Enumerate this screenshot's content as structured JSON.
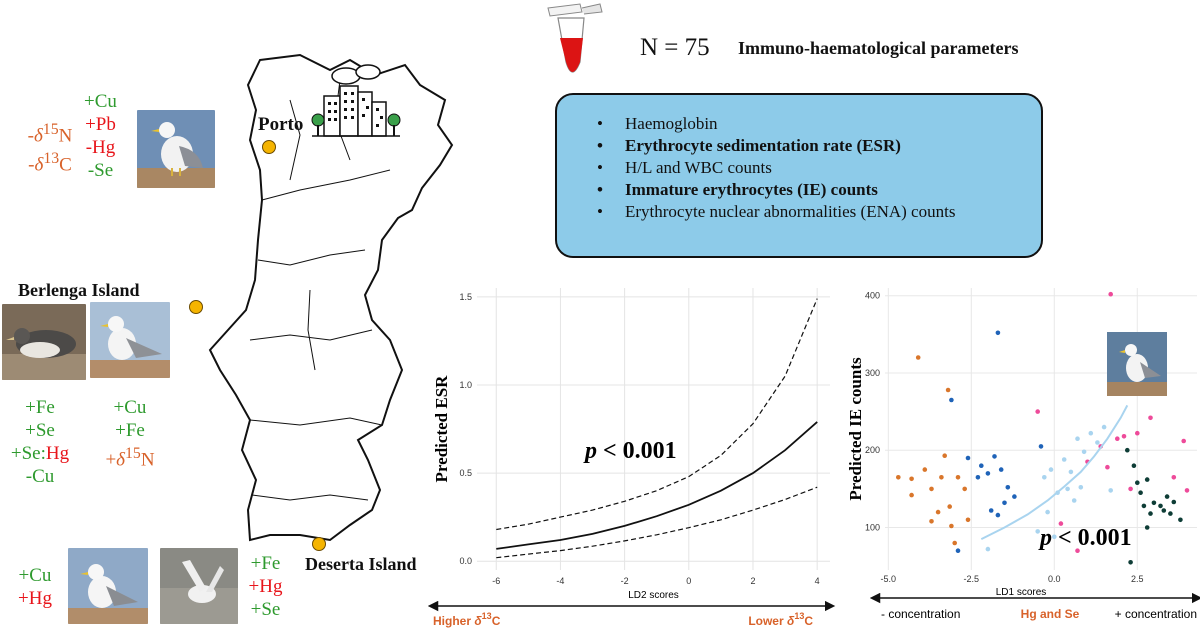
{
  "header": {
    "n_label": "N = 75",
    "parameters_title": "Immuno-haematological parameters"
  },
  "parameters": [
    {
      "label": "Haemoglobin",
      "bold": false
    },
    {
      "label": "Erythrocyte sedimentation rate (ESR)",
      "bold": true
    },
    {
      "label": "H/L and WBC counts",
      "bold": false
    },
    {
      "label": "Immature erythrocytes (IE) counts",
      "bold": true
    },
    {
      "label": "Erythrocyte nuclear abnormalities (ENA) counts",
      "bold": false
    }
  ],
  "sites": {
    "porto": {
      "name": "Porto",
      "left_list": [
        "-δ15N",
        "-δ13C"
      ],
      "right_list": [
        "+Cu",
        "+Pb",
        "-Hg",
        "-Se"
      ]
    },
    "berlenga": {
      "name": "Berlenga Island",
      "left_list": [
        "+Fe",
        "+Se",
        "+Se:Hg",
        "-Cu"
      ],
      "right_list": [
        "+Cu",
        "+Fe",
        "+δ15N"
      ]
    },
    "deserta": {
      "name": "Deserta Island",
      "left_list": [
        "+Cu",
        "+Hg"
      ],
      "right_list": [
        "+Fe",
        "+Hg",
        "+Se"
      ]
    }
  },
  "colors": {
    "increase": "#2e9a2e",
    "decrease": "#e8151b",
    "isotope": "#d8622a",
    "box": "#8dcbe9",
    "marker": "#f5b400"
  },
  "chart_data": [
    {
      "type": "line",
      "title": "",
      "xlabel": "LD2 scores",
      "ylabel": "Predicted ESR",
      "xlim": [
        -6.6,
        4.4
      ],
      "ylim": [
        -0.05,
        1.55
      ],
      "x_ticks": [
        -6,
        -4,
        -2,
        0,
        2,
        4
      ],
      "y_ticks": [
        0.0,
        0.5,
        1.0,
        1.5
      ],
      "grid": true,
      "annotation": "p < 0.001",
      "gradient_labels": {
        "left": "Higher δ13C",
        "right": "Lower δ13C"
      },
      "series": [
        {
          "style": "solid",
          "x": [
            -6,
            -5,
            -4,
            -3,
            -2,
            -1,
            0,
            1,
            2,
            3,
            4
          ],
          "y": [
            0.07,
            0.095,
            0.12,
            0.155,
            0.2,
            0.255,
            0.32,
            0.4,
            0.5,
            0.63,
            0.79
          ]
        },
        {
          "style": "dashed",
          "x": [
            -6,
            -5,
            -4,
            -3,
            -2,
            -1,
            0,
            1,
            2,
            3,
            4
          ],
          "y": [
            0.18,
            0.21,
            0.25,
            0.29,
            0.34,
            0.4,
            0.48,
            0.6,
            0.78,
            1.05,
            1.49
          ]
        },
        {
          "style": "dashed",
          "x": [
            -6,
            -5,
            -4,
            -3,
            -2,
            -1,
            0,
            1,
            2,
            3,
            4
          ],
          "y": [
            0.02,
            0.04,
            0.06,
            0.085,
            0.115,
            0.15,
            0.19,
            0.235,
            0.29,
            0.35,
            0.42
          ]
        }
      ]
    },
    {
      "type": "scatter",
      "title": "",
      "xlabel": "LD1 scores",
      "ylabel": "Predicted IE counts",
      "xlim": [
        -5.1,
        4.3
      ],
      "ylim": [
        45,
        410
      ],
      "x_ticks": [
        -5.0,
        -2.5,
        0.0,
        2.5
      ],
      "y_ticks": [
        100,
        200,
        300,
        400
      ],
      "grid": true,
      "annotation": "p < 0.001",
      "gradient_labels": {
        "left": "- concentration",
        "middle": "Hg and Se",
        "right": "+ concentration"
      },
      "fit_curve": {
        "color": "#a9d4ef",
        "x": [
          -2.2,
          -1.5,
          -0.8,
          -0.2,
          0.3,
          0.8,
          1.2,
          1.6,
          2.0,
          2.2
        ],
        "y": [
          85,
          100,
          117,
          135,
          153,
          172,
          192,
          215,
          242,
          258
        ]
      },
      "series": [
        {
          "color": "#d9762b",
          "points": [
            [
              -4.7,
              165
            ],
            [
              -4.3,
              163
            ],
            [
              -4.1,
              320
            ],
            [
              -3.9,
              175
            ],
            [
              -3.7,
              150
            ],
            [
              -3.5,
              120
            ],
            [
              -3.4,
              165
            ],
            [
              -3.3,
              193
            ],
            [
              -3.2,
              278
            ],
            [
              -3.15,
              127
            ],
            [
              -3.1,
              102
            ],
            [
              -3.0,
              80
            ],
            [
              -2.9,
              165
            ],
            [
              -2.7,
              150
            ],
            [
              -2.6,
              110
            ],
            [
              -3.7,
              108
            ],
            [
              -4.3,
              142
            ]
          ]
        },
        {
          "color": "#1f63b8",
          "points": [
            [
              -3.1,
              265
            ],
            [
              -2.6,
              190
            ],
            [
              -2.3,
              165
            ],
            [
              -2.2,
              180
            ],
            [
              -2.0,
              170
            ],
            [
              -1.8,
              192
            ],
            [
              -1.7,
              352
            ],
            [
              -1.6,
              175
            ],
            [
              -1.4,
              152
            ],
            [
              -1.2,
              140
            ],
            [
              -1.5,
              132
            ],
            [
              -1.7,
              116
            ],
            [
              -1.9,
              122
            ],
            [
              -2.9,
              70
            ],
            [
              -0.4,
              205
            ]
          ]
        },
        {
          "color": "#a9d4ef",
          "points": [
            [
              -0.3,
              165
            ],
            [
              -0.1,
              175
            ],
            [
              0.1,
              145
            ],
            [
              0.3,
              188
            ],
            [
              0.5,
              172
            ],
            [
              0.6,
              135
            ],
            [
              0.7,
              215
            ],
            [
              0.9,
              198
            ],
            [
              1.1,
              222
            ],
            [
              1.3,
              210
            ],
            [
              1.5,
              230
            ],
            [
              0.0,
              88
            ],
            [
              -0.2,
              120
            ],
            [
              -0.5,
              95
            ],
            [
              0.4,
              150
            ],
            [
              1.7,
              148
            ],
            [
              0.8,
              152
            ],
            [
              -2.0,
              72
            ]
          ]
        },
        {
          "color": "#ee4b9a",
          "points": [
            [
              1.7,
              402
            ],
            [
              -0.5,
              250
            ],
            [
              1.0,
              185
            ],
            [
              1.4,
              205
            ],
            [
              1.9,
              215
            ],
            [
              2.1,
              218
            ],
            [
              2.5,
              222
            ],
            [
              2.9,
              242
            ],
            [
              3.6,
              165
            ],
            [
              3.9,
              212
            ],
            [
              4.0,
              148
            ],
            [
              0.7,
              70
            ],
            [
              0.2,
              105
            ],
            [
              1.6,
              178
            ],
            [
              2.3,
              150
            ]
          ]
        },
        {
          "color": "#0e3d36",
          "points": [
            [
              2.2,
              200
            ],
            [
              2.4,
              180
            ],
            [
              2.5,
              158
            ],
            [
              2.6,
              145
            ],
            [
              2.7,
              128
            ],
            [
              2.8,
              162
            ],
            [
              2.9,
              118
            ],
            [
              3.0,
              132
            ],
            [
              3.2,
              128
            ],
            [
              3.4,
              140
            ],
            [
              3.5,
              118
            ],
            [
              3.6,
              133
            ],
            [
              3.8,
              110
            ],
            [
              2.8,
              100
            ],
            [
              2.3,
              55
            ],
            [
              3.3,
              122
            ]
          ]
        }
      ]
    }
  ]
}
